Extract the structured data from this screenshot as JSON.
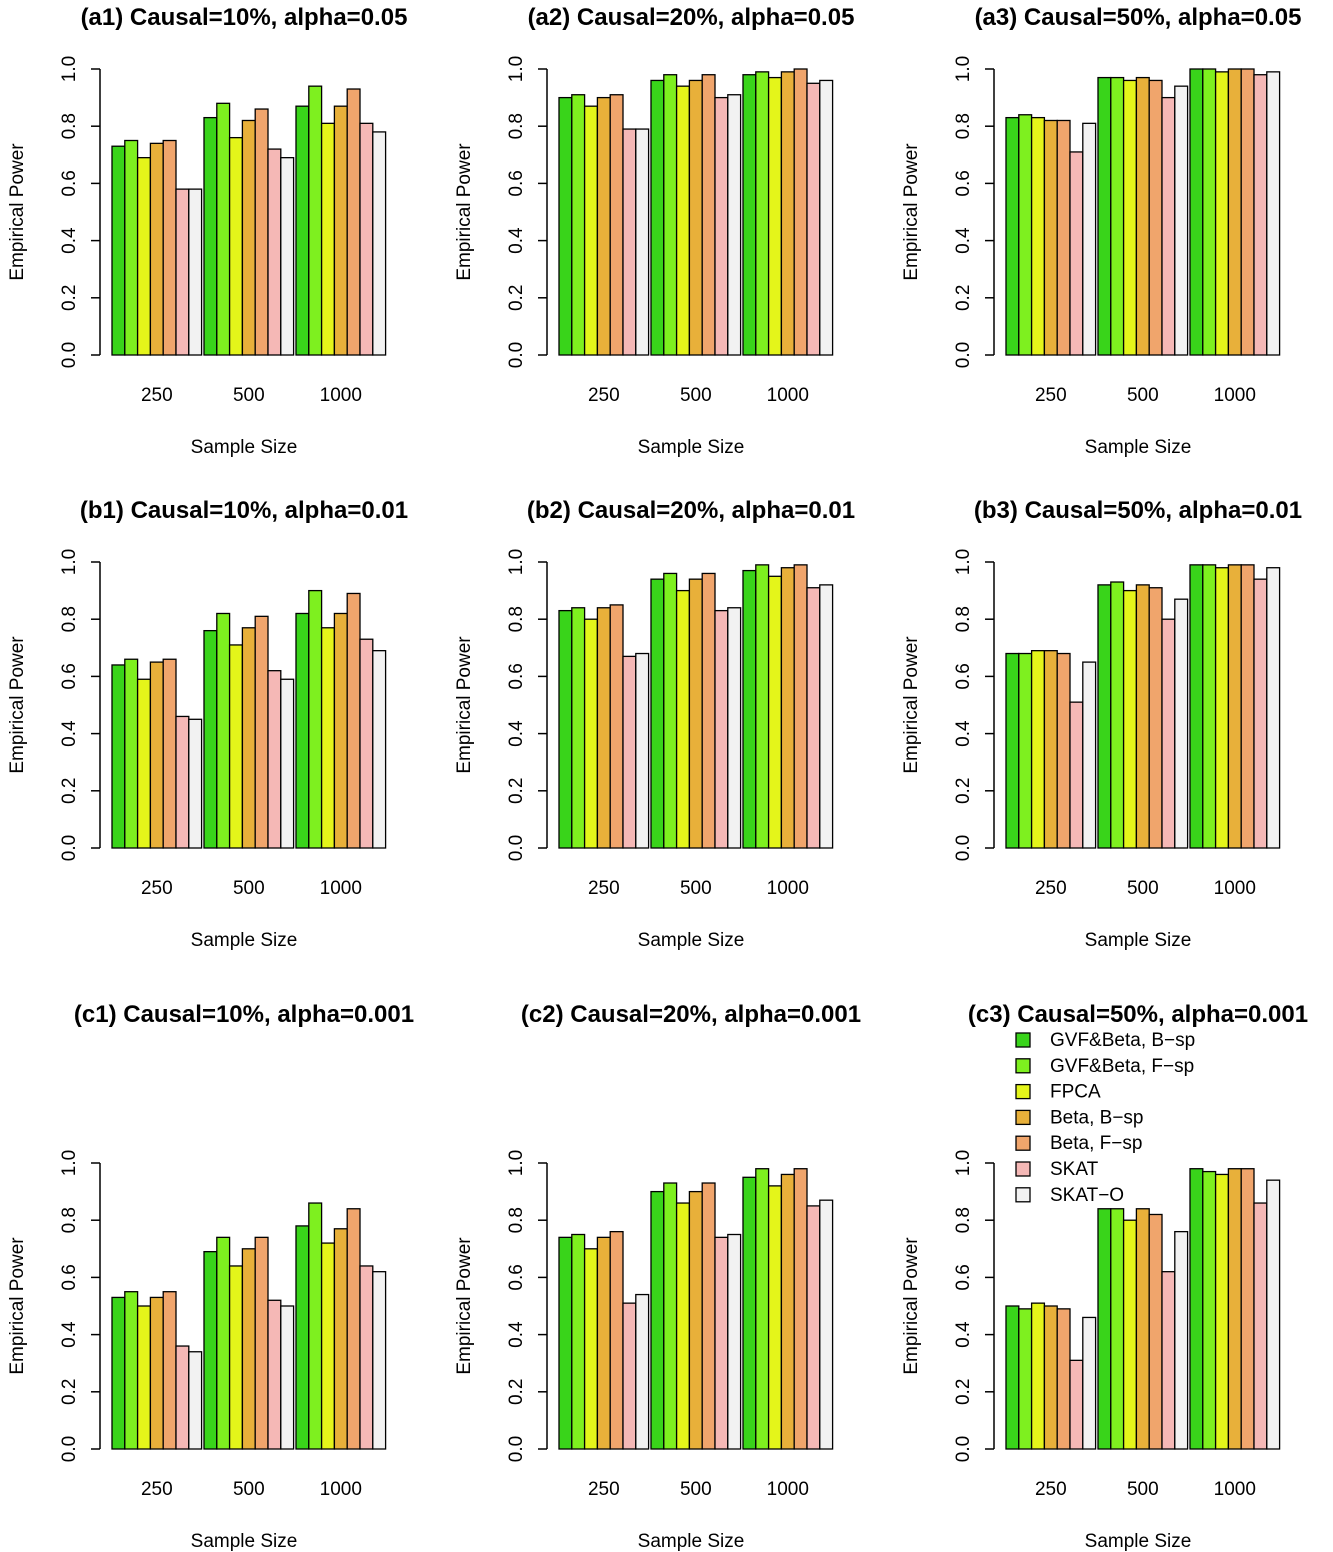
{
  "chart_data": [
    {
      "type": "bar",
      "title": "(a1) Causal=10%, alpha=0.05",
      "xlabel": "Sample Size",
      "ylabel": "Empirical Power",
      "ylim": [
        0,
        1
      ],
      "yticks": [
        "0.0",
        "0.2",
        "0.4",
        "0.6",
        "0.8",
        "1.0"
      ],
      "categories": [
        "250",
        "500",
        "1000"
      ],
      "series": [
        {
          "name": "GVF&Beta, B−sp",
          "values": [
            0.73,
            0.83,
            0.87
          ]
        },
        {
          "name": "GVF&Beta, F−sp",
          "values": [
            0.75,
            0.88,
            0.94
          ]
        },
        {
          "name": "FPCA",
          "values": [
            0.69,
            0.76,
            0.81
          ]
        },
        {
          "name": "Beta, B−sp",
          "values": [
            0.74,
            0.82,
            0.87
          ]
        },
        {
          "name": "Beta, F−sp",
          "values": [
            0.75,
            0.86,
            0.93
          ]
        },
        {
          "name": "SKAT",
          "values": [
            0.58,
            0.72,
            0.81
          ]
        },
        {
          "name": "SKAT−O",
          "values": [
            0.58,
            0.69,
            0.78
          ]
        }
      ]
    },
    {
      "type": "bar",
      "title": "(a2) Causal=20%, alpha=0.05",
      "xlabel": "Sample Size",
      "ylabel": "Empirical Power",
      "ylim": [
        0,
        1
      ],
      "yticks": [
        "0.0",
        "0.2",
        "0.4",
        "0.6",
        "0.8",
        "1.0"
      ],
      "categories": [
        "250",
        "500",
        "1000"
      ],
      "series": [
        {
          "name": "GVF&Beta, B−sp",
          "values": [
            0.9,
            0.96,
            0.98
          ]
        },
        {
          "name": "GVF&Beta, F−sp",
          "values": [
            0.91,
            0.98,
            0.99
          ]
        },
        {
          "name": "FPCA",
          "values": [
            0.87,
            0.94,
            0.97
          ]
        },
        {
          "name": "Beta, B−sp",
          "values": [
            0.9,
            0.96,
            0.99
          ]
        },
        {
          "name": "Beta, F−sp",
          "values": [
            0.91,
            0.98,
            1.0
          ]
        },
        {
          "name": "SKAT",
          "values": [
            0.79,
            0.9,
            0.95
          ]
        },
        {
          "name": "SKAT−O",
          "values": [
            0.79,
            0.91,
            0.96
          ]
        }
      ]
    },
    {
      "type": "bar",
      "title": "(a3) Causal=50%, alpha=0.05",
      "xlabel": "Sample Size",
      "ylabel": "Empirical Power",
      "ylim": [
        0,
        1
      ],
      "yticks": [
        "0.0",
        "0.2",
        "0.4",
        "0.6",
        "0.8",
        "1.0"
      ],
      "categories": [
        "250",
        "500",
        "1000"
      ],
      "series": [
        {
          "name": "GVF&Beta, B−sp",
          "values": [
            0.83,
            0.97,
            1.0
          ]
        },
        {
          "name": "GVF&Beta, F−sp",
          "values": [
            0.84,
            0.97,
            1.0
          ]
        },
        {
          "name": "FPCA",
          "values": [
            0.83,
            0.96,
            0.99
          ]
        },
        {
          "name": "Beta, B−sp",
          "values": [
            0.82,
            0.97,
            1.0
          ]
        },
        {
          "name": "Beta, F−sp",
          "values": [
            0.82,
            0.96,
            1.0
          ]
        },
        {
          "name": "SKAT",
          "values": [
            0.71,
            0.9,
            0.98
          ]
        },
        {
          "name": "SKAT−O",
          "values": [
            0.81,
            0.94,
            0.99
          ]
        }
      ]
    },
    {
      "type": "bar",
      "title": "(b1) Causal=10%, alpha=0.01",
      "xlabel": "Sample Size",
      "ylabel": "Empirical Power",
      "ylim": [
        0,
        1
      ],
      "yticks": [
        "0.0",
        "0.2",
        "0.4",
        "0.6",
        "0.8",
        "1.0"
      ],
      "categories": [
        "250",
        "500",
        "1000"
      ],
      "series": [
        {
          "name": "GVF&Beta, B−sp",
          "values": [
            0.64,
            0.76,
            0.82
          ]
        },
        {
          "name": "GVF&Beta, F−sp",
          "values": [
            0.66,
            0.82,
            0.9
          ]
        },
        {
          "name": "FPCA",
          "values": [
            0.59,
            0.71,
            0.77
          ]
        },
        {
          "name": "Beta, B−sp",
          "values": [
            0.65,
            0.77,
            0.82
          ]
        },
        {
          "name": "Beta, F−sp",
          "values": [
            0.66,
            0.81,
            0.89
          ]
        },
        {
          "name": "SKAT",
          "values": [
            0.46,
            0.62,
            0.73
          ]
        },
        {
          "name": "SKAT−O",
          "values": [
            0.45,
            0.59,
            0.69
          ]
        }
      ]
    },
    {
      "type": "bar",
      "title": "(b2) Causal=20%, alpha=0.01",
      "xlabel": "Sample Size",
      "ylabel": "Empirical Power",
      "ylim": [
        0,
        1
      ],
      "yticks": [
        "0.0",
        "0.2",
        "0.4",
        "0.6",
        "0.8",
        "1.0"
      ],
      "categories": [
        "250",
        "500",
        "1000"
      ],
      "series": [
        {
          "name": "GVF&Beta, B−sp",
          "values": [
            0.83,
            0.94,
            0.97
          ]
        },
        {
          "name": "GVF&Beta, F−sp",
          "values": [
            0.84,
            0.96,
            0.99
          ]
        },
        {
          "name": "FPCA",
          "values": [
            0.8,
            0.9,
            0.95
          ]
        },
        {
          "name": "Beta, B−sp",
          "values": [
            0.84,
            0.94,
            0.98
          ]
        },
        {
          "name": "Beta, F−sp",
          "values": [
            0.85,
            0.96,
            0.99
          ]
        },
        {
          "name": "SKAT",
          "values": [
            0.67,
            0.83,
            0.91
          ]
        },
        {
          "name": "SKAT−O",
          "values": [
            0.68,
            0.84,
            0.92
          ]
        }
      ]
    },
    {
      "type": "bar",
      "title": "(b3) Causal=50%, alpha=0.01",
      "xlabel": "Sample Size",
      "ylabel": "Empirical Power",
      "ylim": [
        0,
        1
      ],
      "yticks": [
        "0.0",
        "0.2",
        "0.4",
        "0.6",
        "0.8",
        "1.0"
      ],
      "categories": [
        "250",
        "500",
        "1000"
      ],
      "series": [
        {
          "name": "GVF&Beta, B−sp",
          "values": [
            0.68,
            0.92,
            0.99
          ]
        },
        {
          "name": "GVF&Beta, F−sp",
          "values": [
            0.68,
            0.93,
            0.99
          ]
        },
        {
          "name": "FPCA",
          "values": [
            0.69,
            0.9,
            0.98
          ]
        },
        {
          "name": "Beta, B−sp",
          "values": [
            0.69,
            0.92,
            0.99
          ]
        },
        {
          "name": "Beta, F−sp",
          "values": [
            0.68,
            0.91,
            0.99
          ]
        },
        {
          "name": "SKAT",
          "values": [
            0.51,
            0.8,
            0.94
          ]
        },
        {
          "name": "SKAT−O",
          "values": [
            0.65,
            0.87,
            0.98
          ]
        }
      ]
    },
    {
      "type": "bar",
      "title": "(c1) Causal=10%, alpha=0.001",
      "xlabel": "Sample Size",
      "ylabel": "Empirical Power",
      "ylim": [
        0,
        1
      ],
      "yticks": [
        "0.0",
        "0.2",
        "0.4",
        "0.6",
        "0.8",
        "1.0"
      ],
      "categories": [
        "250",
        "500",
        "1000"
      ],
      "series": [
        {
          "name": "GVF&Beta, B−sp",
          "values": [
            0.53,
            0.69,
            0.78
          ]
        },
        {
          "name": "GVF&Beta, F−sp",
          "values": [
            0.55,
            0.74,
            0.86
          ]
        },
        {
          "name": "FPCA",
          "values": [
            0.5,
            0.64,
            0.72
          ]
        },
        {
          "name": "Beta, B−sp",
          "values": [
            0.53,
            0.7,
            0.77
          ]
        },
        {
          "name": "Beta, F−sp",
          "values": [
            0.55,
            0.74,
            0.84
          ]
        },
        {
          "name": "SKAT",
          "values": [
            0.36,
            0.52,
            0.64
          ]
        },
        {
          "name": "SKAT−O",
          "values": [
            0.34,
            0.5,
            0.62
          ]
        }
      ]
    },
    {
      "type": "bar",
      "title": "(c2) Causal=20%, alpha=0.001",
      "xlabel": "Sample Size",
      "ylabel": "Empirical Power",
      "ylim": [
        0,
        1
      ],
      "yticks": [
        "0.0",
        "0.2",
        "0.4",
        "0.6",
        "0.8",
        "1.0"
      ],
      "categories": [
        "250",
        "500",
        "1000"
      ],
      "series": [
        {
          "name": "GVF&Beta, B−sp",
          "values": [
            0.74,
            0.9,
            0.95
          ]
        },
        {
          "name": "GVF&Beta, F−sp",
          "values": [
            0.75,
            0.93,
            0.98
          ]
        },
        {
          "name": "FPCA",
          "values": [
            0.7,
            0.86,
            0.92
          ]
        },
        {
          "name": "Beta, B−sp",
          "values": [
            0.74,
            0.9,
            0.96
          ]
        },
        {
          "name": "Beta, F−sp",
          "values": [
            0.76,
            0.93,
            0.98
          ]
        },
        {
          "name": "SKAT",
          "values": [
            0.51,
            0.74,
            0.85
          ]
        },
        {
          "name": "SKAT−O",
          "values": [
            0.54,
            0.75,
            0.87
          ]
        }
      ]
    },
    {
      "type": "bar",
      "title": "(c3) Causal=50%, alpha=0.001",
      "xlabel": "Sample Size",
      "ylabel": "Empirical Power",
      "ylim": [
        0,
        1
      ],
      "yticks": [
        "0.0",
        "0.2",
        "0.4",
        "0.6",
        "0.8",
        "1.0"
      ],
      "categories": [
        "250",
        "500",
        "1000"
      ],
      "legend": "top",
      "series": [
        {
          "name": "GVF&Beta, B−sp",
          "values": [
            0.5,
            0.84,
            0.98
          ]
        },
        {
          "name": "GVF&Beta, F−sp",
          "values": [
            0.49,
            0.84,
            0.97
          ]
        },
        {
          "name": "FPCA",
          "values": [
            0.51,
            0.8,
            0.96
          ]
        },
        {
          "name": "Beta, B−sp",
          "values": [
            0.5,
            0.84,
            0.98
          ]
        },
        {
          "name": "Beta, F−sp",
          "values": [
            0.49,
            0.82,
            0.98
          ]
        },
        {
          "name": "SKAT",
          "values": [
            0.31,
            0.62,
            0.86
          ]
        },
        {
          "name": "SKAT−O",
          "values": [
            0.46,
            0.76,
            0.94
          ]
        }
      ]
    }
  ],
  "legend": {
    "items": [
      {
        "label": "GVF&Beta, B−sp",
        "color": "#39d41a"
      },
      {
        "label": "GVF&Beta, F−sp",
        "color": "#7ef01f"
      },
      {
        "label": "FPCA",
        "color": "#e4f51a"
      },
      {
        "label": "Beta, B−sp",
        "color": "#e8b03a"
      },
      {
        "label": "Beta, F−sp",
        "color": "#f0a56c"
      },
      {
        "label": "SKAT",
        "color": "#f5b8b6"
      },
      {
        "label": "SKAT−O",
        "color": "#f2f2f2"
      }
    ]
  },
  "colors": [
    "#39d41a",
    "#7ef01f",
    "#e4f51a",
    "#e8b03a",
    "#f0a56c",
    "#f5b8b6",
    "#f2f2f2"
  ]
}
